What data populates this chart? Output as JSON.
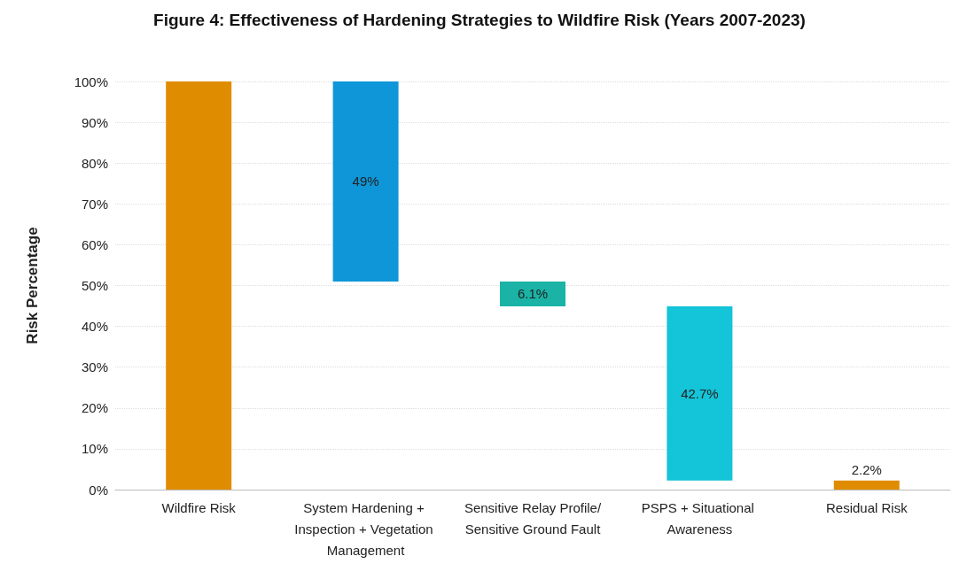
{
  "chart_data": {
    "type": "bar",
    "title": "Figure 4: Effectiveness of Hardening Strategies to Wildfire Risk (Years 2007-2023)",
    "ylabel": "Risk Percentage",
    "categories": [
      "Wildfire Risk",
      "System Hardening + Inspection + Vegetation Management",
      "Sensitive Relay Profile/Sensitive Ground Fault",
      "PSPS + Situational Awareness",
      "Residual Risk"
    ],
    "values": [
      100,
      49,
      6.1,
      42.7,
      2.2
    ],
    "base": [
      0,
      51,
      44.9,
      2.2,
      0
    ],
    "colors": [
      "#e08c00",
      "#0e96d8",
      "#1ab3a6",
      "#14c4d8",
      "#e08c00"
    ],
    "value_labels": [
      null,
      "49%",
      "6.1%",
      "42.7%",
      "2.2%"
    ],
    "ylim": [
      0,
      100
    ],
    "yticks": [
      {
        "value": 0,
        "label": "0%"
      },
      {
        "value": 10,
        "label": "10%"
      },
      {
        "value": 20,
        "label": "20%"
      },
      {
        "value": 30,
        "label": "30%"
      },
      {
        "value": 40,
        "label": "40%"
      },
      {
        "value": 50,
        "label": "50%"
      },
      {
        "value": 60,
        "label": "60%"
      },
      {
        "value": 70,
        "label": "70%"
      },
      {
        "value": 80,
        "label": "80%"
      },
      {
        "value": 90,
        "label": "90%"
      },
      {
        "value": 100,
        "label": "100%"
      }
    ],
    "grid": "y"
  }
}
